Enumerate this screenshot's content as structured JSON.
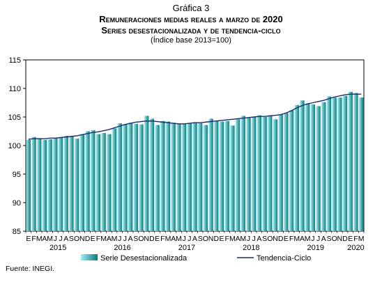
{
  "header": {
    "figure_label": "Gráfica 3",
    "title": "Remuneraciones medias reales a marzo de 2020",
    "subtitle": "Series desestacionalizada y de tendencia-ciclo",
    "base_note": "(Índice base 2013=100)"
  },
  "footer": {
    "source": "Fuente: INEGI."
  },
  "colors": {
    "bar_light": "#9ef0f0",
    "bar_dark": "#0a7a80",
    "trend": "#1f2a6b",
    "axis": "#000000"
  },
  "chart_data": {
    "type": "bar",
    "ylim": [
      85,
      115
    ],
    "yticks": [
      85,
      90,
      95,
      100,
      105,
      110,
      115
    ],
    "grid": false,
    "legend_position": "bottom",
    "month_letters": [
      "E",
      "F",
      "M",
      "A",
      "M",
      "J",
      "J",
      "A",
      "S",
      "O",
      "N",
      "D"
    ],
    "last_year_month_letters": [
      "E",
      "F",
      "M"
    ],
    "years": [
      "2015",
      "2016",
      "2017",
      "2018",
      "2019",
      "2020"
    ],
    "categories": [
      "2015-01",
      "2015-02",
      "2015-03",
      "2015-04",
      "2015-05",
      "2015-06",
      "2015-07",
      "2015-08",
      "2015-09",
      "2015-10",
      "2015-11",
      "2015-12",
      "2016-01",
      "2016-02",
      "2016-03",
      "2016-04",
      "2016-05",
      "2016-06",
      "2016-07",
      "2016-08",
      "2016-09",
      "2016-10",
      "2016-11",
      "2016-12",
      "2017-01",
      "2017-02",
      "2017-03",
      "2017-04",
      "2017-05",
      "2017-06",
      "2017-07",
      "2017-08",
      "2017-09",
      "2017-10",
      "2017-11",
      "2017-12",
      "2018-01",
      "2018-02",
      "2018-03",
      "2018-04",
      "2018-05",
      "2018-06",
      "2018-07",
      "2018-08",
      "2018-09",
      "2018-10",
      "2018-11",
      "2018-12",
      "2019-01",
      "2019-02",
      "2019-03",
      "2019-04",
      "2019-05",
      "2019-06",
      "2019-07",
      "2019-08",
      "2019-09",
      "2019-10",
      "2019-11",
      "2019-12",
      "2020-01",
      "2020-02",
      "2020-03"
    ],
    "series": [
      {
        "name": "Serie Desestacionalizada",
        "kind": "bar",
        "values": [
          101.0,
          101.5,
          101.3,
          101.0,
          101.1,
          101.3,
          101.5,
          101.7,
          101.6,
          101.2,
          102.0,
          102.5,
          102.7,
          102.0,
          102.2,
          102.0,
          103.0,
          103.9,
          103.7,
          104.0,
          103.8,
          103.7,
          105.2,
          104.7,
          103.6,
          104.3,
          104.2,
          104.0,
          103.8,
          103.8,
          103.9,
          104.1,
          103.9,
          103.6,
          104.7,
          104.3,
          104.2,
          104.3,
          103.5,
          104.6,
          105.2,
          104.9,
          105.0,
          105.3,
          105.0,
          105.3,
          104.6,
          105.5,
          105.7,
          106.2,
          107.1,
          107.9,
          107.4,
          107.2,
          106.9,
          107.6,
          108.6,
          108.4,
          108.4,
          108.7,
          109.4,
          109.2,
          108.4
        ]
      },
      {
        "name": "Tendencia-Ciclo",
        "kind": "line",
        "values": [
          101.1,
          101.2,
          101.2,
          101.2,
          101.3,
          101.3,
          101.4,
          101.5,
          101.6,
          101.7,
          101.9,
          102.1,
          102.3,
          102.4,
          102.6,
          102.8,
          103.1,
          103.4,
          103.7,
          103.9,
          104.1,
          104.2,
          104.3,
          104.3,
          104.2,
          104.1,
          104.0,
          103.9,
          103.8,
          103.8,
          103.9,
          104.0,
          104.0,
          104.1,
          104.2,
          104.3,
          104.4,
          104.5,
          104.6,
          104.7,
          104.8,
          104.9,
          105.0,
          105.1,
          105.1,
          105.2,
          105.3,
          105.4,
          105.7,
          106.1,
          106.6,
          107.0,
          107.3,
          107.5,
          107.7,
          107.9,
          108.2,
          108.5,
          108.7,
          108.9,
          109.0,
          109.0,
          109.0
        ]
      }
    ]
  }
}
